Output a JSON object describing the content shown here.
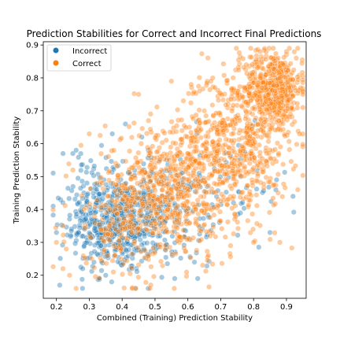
{
  "chart_data": {
    "type": "scatter",
    "title": "Prediction Stabilities for Correct and Incorrect Final Predictions",
    "xlabel": "Combined (Training) Prediction Stability",
    "ylabel": "Training Prediction Stability",
    "xlim": [
      0.16,
      0.96
    ],
    "ylim": [
      0.13,
      0.91
    ],
    "xticks": [
      "0.2",
      "0.3",
      "0.4",
      "0.5",
      "0.6",
      "0.7",
      "0.8",
      "0.9"
    ],
    "yticks": [
      "0.2",
      "0.3",
      "0.4",
      "0.5",
      "0.6",
      "0.7",
      "0.8",
      "0.9"
    ],
    "grid": false,
    "legend_position": "top-left",
    "point_alpha": 0.4,
    "series": [
      {
        "name": "Incorrect",
        "color": "#1f77b4",
        "clusters": [
          {
            "cx": 0.38,
            "cy": 0.35,
            "sx": 0.065,
            "sy": 0.07,
            "n": 430
          },
          {
            "cx": 0.52,
            "cy": 0.4,
            "sx": 0.08,
            "sy": 0.075,
            "n": 230
          },
          {
            "cx": 0.3,
            "cy": 0.42,
            "sx": 0.05,
            "sy": 0.08,
            "n": 90
          },
          {
            "cx": 0.72,
            "cy": 0.45,
            "sx": 0.09,
            "sy": 0.09,
            "n": 50
          }
        ],
        "points": [
          [
            0.21,
            0.17
          ],
          [
            0.22,
            0.57
          ],
          [
            0.25,
            0.57
          ],
          [
            0.26,
            0.58
          ],
          [
            0.19,
            0.41
          ],
          [
            0.2,
            0.33
          ],
          [
            0.28,
            0.22
          ],
          [
            0.33,
            0.19
          ],
          [
            0.35,
            0.2
          ],
          [
            0.43,
            0.22
          ],
          [
            0.56,
            0.19
          ],
          [
            0.63,
            0.19
          ],
          [
            0.85,
            0.33
          ],
          [
            0.92,
            0.44
          ],
          [
            0.87,
            0.49
          ],
          [
            0.37,
            0.63
          ],
          [
            0.41,
            0.66
          ],
          [
            0.46,
            0.62
          ],
          [
            0.48,
            0.58
          ],
          [
            0.62,
            0.24
          ]
        ]
      },
      {
        "name": "Correct",
        "color": "#ff7f0e",
        "clusters": [
          {
            "cx": 0.86,
            "cy": 0.77,
            "sx": 0.045,
            "sy": 0.055,
            "n": 520
          },
          {
            "cx": 0.74,
            "cy": 0.6,
            "sx": 0.085,
            "sy": 0.11,
            "n": 560
          },
          {
            "cx": 0.55,
            "cy": 0.45,
            "sx": 0.1,
            "sy": 0.11,
            "n": 560
          },
          {
            "cx": 0.4,
            "cy": 0.38,
            "sx": 0.08,
            "sy": 0.09,
            "n": 180
          }
        ],
        "points": [
          [
            0.82,
            0.88
          ],
          [
            0.86,
            0.89
          ],
          [
            0.9,
            0.88
          ],
          [
            0.93,
            0.86
          ],
          [
            0.95,
            0.71
          ],
          [
            0.94,
            0.63
          ],
          [
            0.95,
            0.75
          ],
          [
            0.88,
            0.3
          ],
          [
            0.8,
            0.3
          ],
          [
            0.73,
            0.29
          ],
          [
            0.2,
            0.3
          ],
          [
            0.22,
            0.22
          ],
          [
            0.24,
            0.2
          ],
          [
            0.26,
            0.16
          ],
          [
            0.22,
            0.35
          ],
          [
            0.23,
            0.28
          ],
          [
            0.25,
            0.52
          ],
          [
            0.45,
            0.75
          ],
          [
            0.55,
            0.79
          ],
          [
            0.61,
            0.78
          ],
          [
            0.65,
            0.7
          ],
          [
            0.67,
            0.79
          ],
          [
            0.48,
            0.67
          ],
          [
            0.3,
            0.63
          ]
        ]
      }
    ]
  }
}
